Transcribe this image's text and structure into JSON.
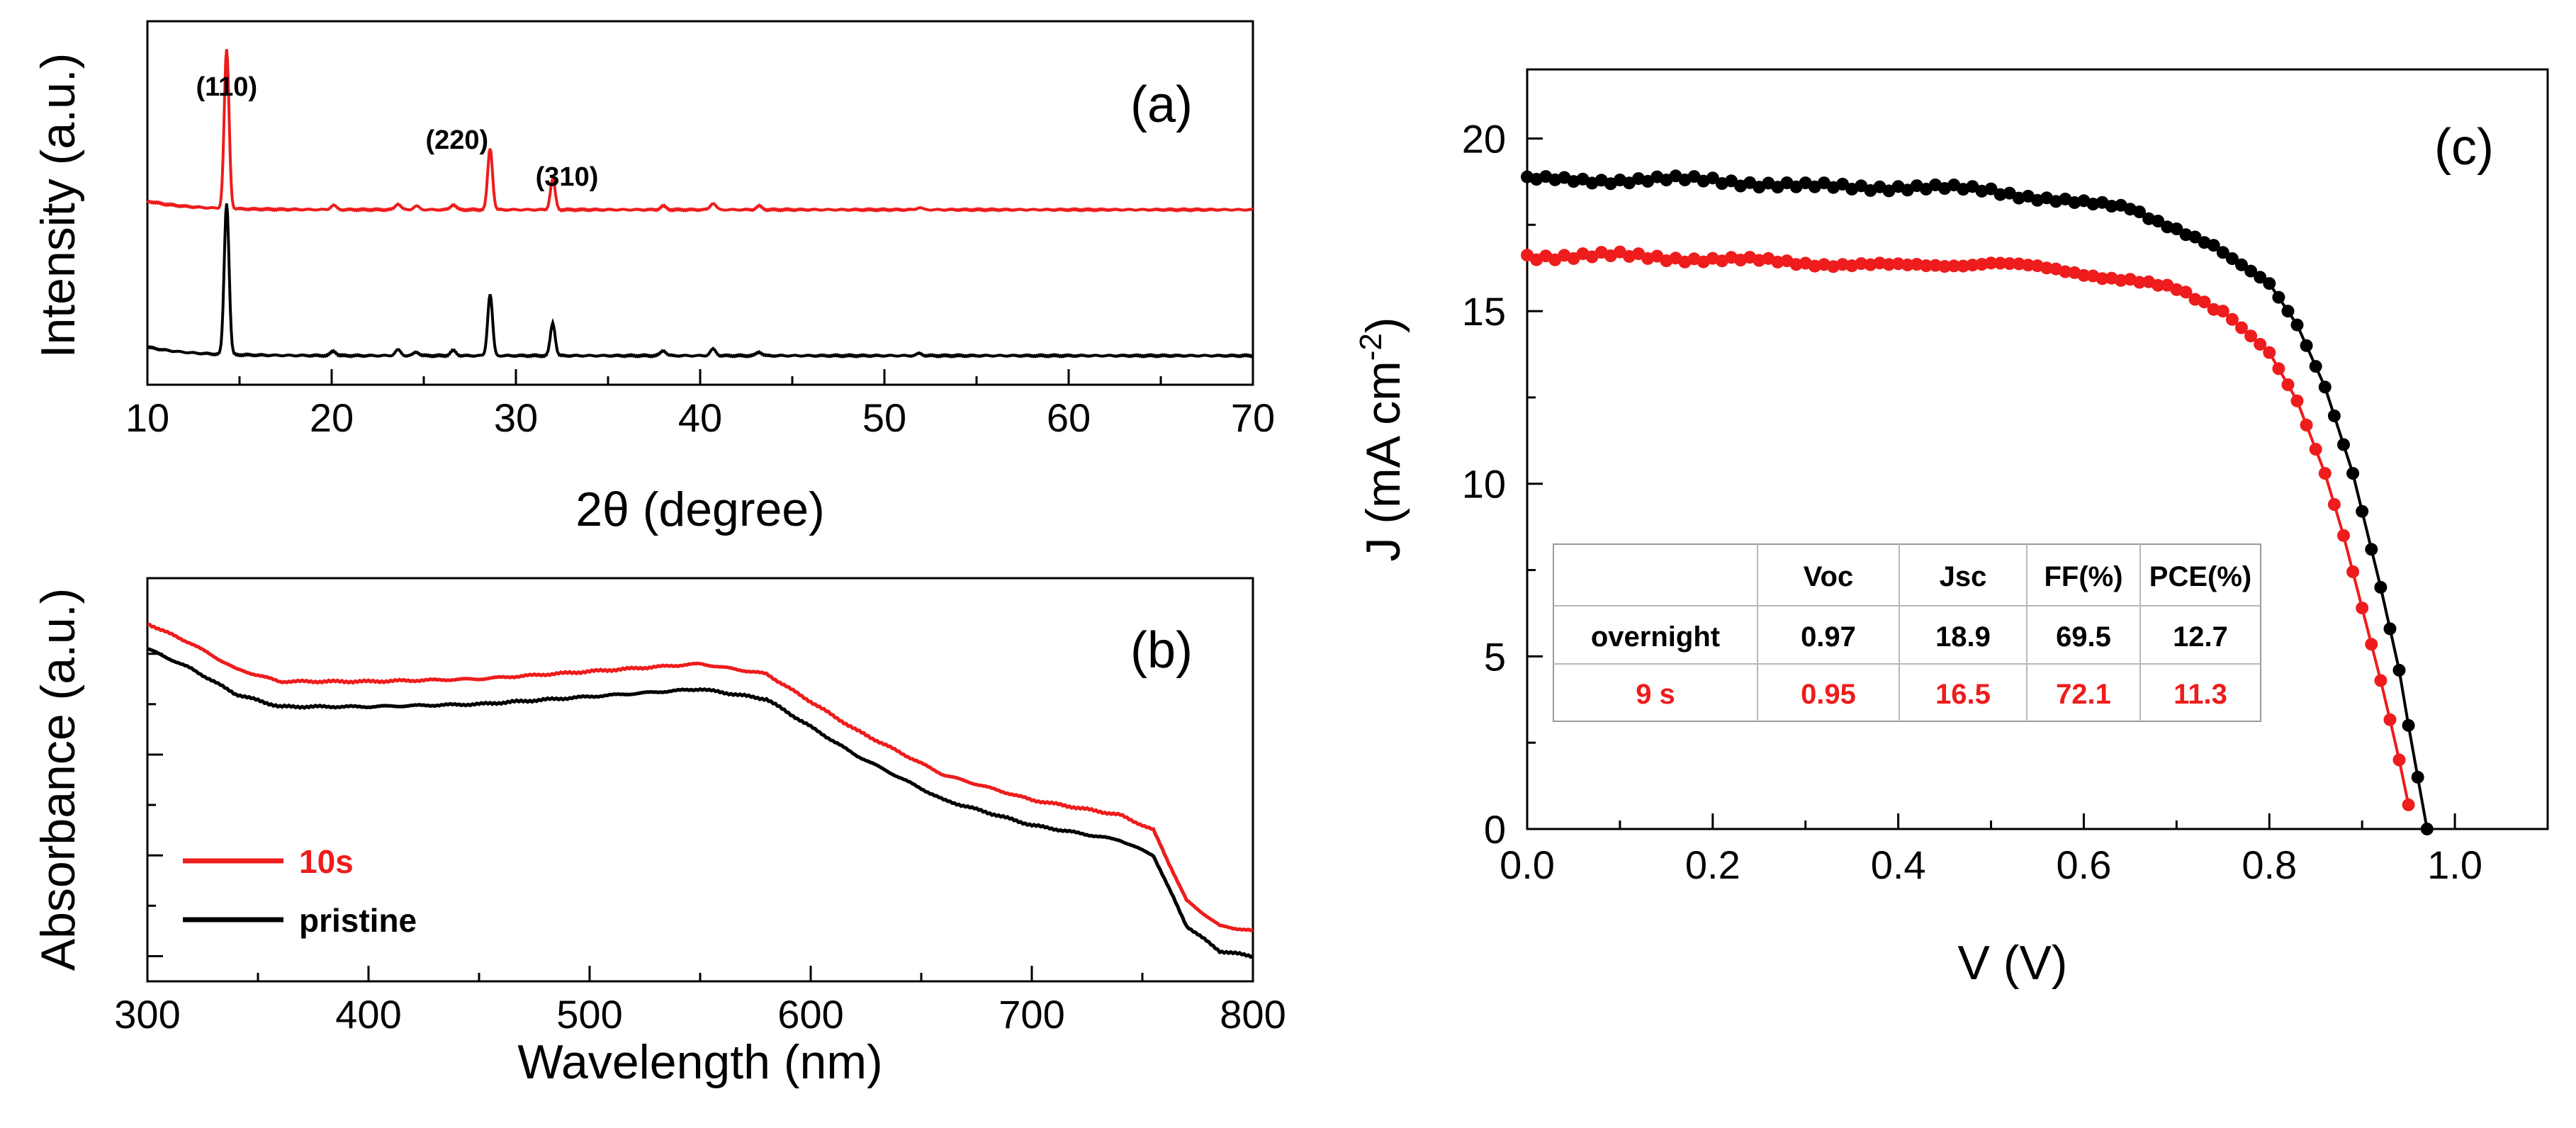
{
  "colors": {
    "red": "#ee1c1c",
    "black": "#000000"
  },
  "chart_data": [
    {
      "type": "line",
      "panel": "(a)",
      "title": "",
      "xlabel": "2θ (degree)",
      "ylabel": "Intensity (a.u.)",
      "xlim": [
        10,
        70
      ],
      "xticks": [
        "10",
        "20",
        "30",
        "40",
        "50",
        "60",
        "70"
      ],
      "peak_labels": [
        "(110)",
        "(220)",
        "(310)"
      ],
      "peaks_x": [
        14.3,
        28.6,
        32.0
      ],
      "series": [
        {
          "name": "10s",
          "color": "#ee1c1c",
          "baseline": 0.2,
          "peak_heights": [
            2.2,
            0.85,
            0.42
          ],
          "minor": [
            [
              20.1,
              0.06
            ],
            [
              23.6,
              0.08
            ],
            [
              24.6,
              0.05
            ],
            [
              26.6,
              0.07
            ],
            [
              38.0,
              0.05
            ],
            [
              40.7,
              0.09
            ],
            [
              43.2,
              0.05
            ],
            [
              51.9,
              0.03
            ]
          ]
        },
        {
          "name": "pristine",
          "color": "#000000",
          "baseline": 0.0,
          "peak_heights": [
            2.1,
            0.85,
            0.45
          ],
          "minor": [
            [
              20.1,
              0.06
            ],
            [
              23.6,
              0.08
            ],
            [
              24.6,
              0.05
            ],
            [
              26.6,
              0.07
            ],
            [
              38.0,
              0.07
            ],
            [
              40.7,
              0.09
            ],
            [
              43.2,
              0.05
            ],
            [
              51.9,
              0.03
            ]
          ]
        }
      ]
    },
    {
      "type": "line",
      "panel": "(b)",
      "title": "",
      "xlabel": "Wavelength (nm)",
      "ylabel": "Absorbance (a.u.)",
      "xlim": [
        300,
        800
      ],
      "xticks": [
        "300",
        "400",
        "500",
        "600",
        "700",
        "800"
      ],
      "legend": [
        "10s",
        "pristine"
      ],
      "series": [
        {
          "name": "10s",
          "color": "#ee1c1c",
          "x": [
            300,
            320,
            340,
            360,
            400,
            450,
            500,
            550,
            580,
            620,
            660,
            700,
            740,
            755,
            770,
            785,
            800
          ],
          "y": [
            0.86,
            0.82,
            0.77,
            0.745,
            0.745,
            0.75,
            0.765,
            0.78,
            0.76,
            0.65,
            0.56,
            0.51,
            0.48,
            0.45,
            0.31,
            0.26,
            0.25
          ]
        },
        {
          "name": "pristine",
          "color": "#000000",
          "x": [
            300,
            320,
            340,
            360,
            400,
            450,
            500,
            550,
            580,
            620,
            660,
            700,
            740,
            755,
            770,
            785,
            800
          ],
          "y": [
            0.81,
            0.77,
            0.72,
            0.695,
            0.695,
            0.7,
            0.715,
            0.73,
            0.71,
            0.6,
            0.51,
            0.46,
            0.43,
            0.4,
            0.26,
            0.21,
            0.2
          ]
        }
      ]
    },
    {
      "type": "line",
      "panel": "(c)",
      "title": "",
      "xlabel": "V (V)",
      "ylabel": "J (mA cm",
      "ylabel_sup": "-2",
      "ylabel_end": ")",
      "xlim": [
        0,
        1.1
      ],
      "ylim": [
        0,
        22
      ],
      "xticks": [
        "0.0",
        "0.2",
        "0.4",
        "0.6",
        "0.8",
        "1.0"
      ],
      "yticks": [
        "0",
        "5",
        "10",
        "15",
        "20"
      ],
      "series": [
        {
          "name": "overnight",
          "color": "#000000",
          "x": [
            0.0,
            0.1,
            0.2,
            0.3,
            0.4,
            0.5,
            0.6,
            0.65,
            0.7,
            0.75,
            0.8,
            0.83,
            0.86,
            0.89,
            0.92,
            0.94,
            0.95,
            0.96,
            0.97
          ],
          "y": [
            18.8,
            18.8,
            18.8,
            18.6,
            18.6,
            18.5,
            18.1,
            18.0,
            17.4,
            16.7,
            15.8,
            14.6,
            12.8,
            10.3,
            7.0,
            4.6,
            3.0,
            1.5,
            0.0
          ]
        },
        {
          "name": "9 s",
          "color": "#ee1c1c",
          "x": [
            0.0,
            0.1,
            0.2,
            0.3,
            0.4,
            0.5,
            0.6,
            0.65,
            0.7,
            0.75,
            0.8,
            0.83,
            0.86,
            0.88,
            0.9,
            0.92,
            0.935,
            0.945,
            0.955
          ],
          "y": [
            16.6,
            16.6,
            16.5,
            16.4,
            16.3,
            16.4,
            16.1,
            15.9,
            15.6,
            15.0,
            13.8,
            12.4,
            10.3,
            8.5,
            6.4,
            4.3,
            2.6,
            1.4,
            0.0
          ]
        }
      ],
      "table": {
        "headers": [
          "",
          "Voc",
          "Jsc",
          "FF(%)",
          "PCE(%)"
        ],
        "rows": [
          {
            "label": "overnight",
            "values": [
              "0.97",
              "18.9",
              "69.5",
              "12.7"
            ],
            "color": "#000000"
          },
          {
            "label": "9 s",
            "values": [
              "0.95",
              "16.5",
              "72.1",
              "11.3"
            ],
            "color": "#ee1c1c"
          }
        ]
      }
    }
  ]
}
